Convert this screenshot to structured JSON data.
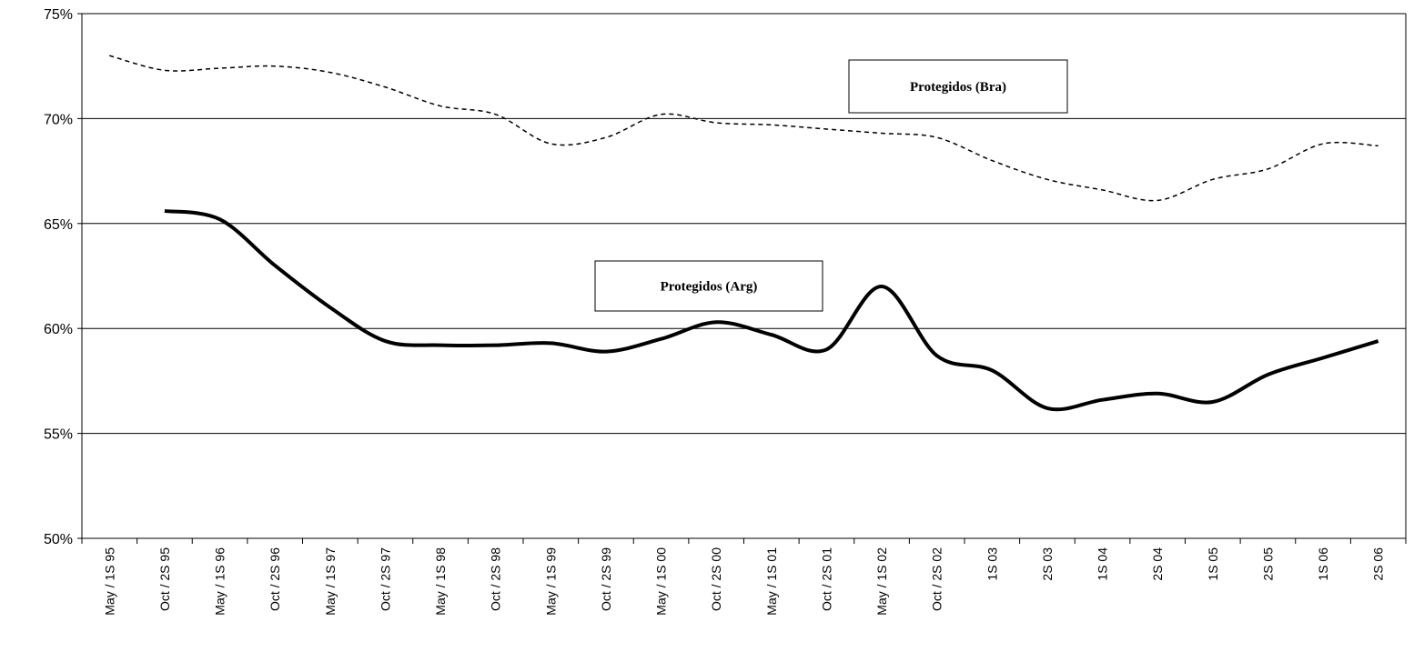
{
  "chart_data": {
    "type": "line",
    "categories": [
      "May / 1S 95",
      "Oct / 2S  95",
      "May / 1S 96",
      "Oct / 2S 96",
      "May / 1S 97",
      "Oct / 2S 97",
      "May / 1S 98",
      "Oct / 2S 98",
      "May / 1S 99",
      "Oct / 2S 99",
      "May / 1S 00",
      "Oct / 2S 00",
      "May / 1S 01",
      "Oct / 2S 01",
      "May / 1S 02",
      "Oct / 2S 02",
      "1S 03",
      "2S 03",
      "1S 04",
      "2S 04",
      "1S 05",
      "2S 05",
      "1S 06",
      "2S 06"
    ],
    "series": [
      {
        "name": "Protegidos (Bra)",
        "color": "#000000",
        "dashed": true,
        "values": [
          73.0,
          72.3,
          72.4,
          72.5,
          72.2,
          71.5,
          70.6,
          70.2,
          68.8,
          69.1,
          70.2,
          69.8,
          69.7,
          69.5,
          69.3,
          69.1,
          68.0,
          67.1,
          66.6,
          66.1,
          67.1,
          67.6,
          68.8,
          68.7
        ]
      },
      {
        "name": "Protegidos (Arg)",
        "color": "#000000",
        "dashed": false,
        "values": [
          null,
          65.6,
          65.2,
          63.0,
          61.0,
          59.4,
          59.2,
          59.2,
          59.3,
          58.9,
          59.5,
          60.3,
          59.7,
          59.0,
          62.0,
          58.7,
          58.0,
          56.2,
          56.6,
          56.9,
          56.5,
          57.8,
          58.6,
          59.4
        ]
      }
    ],
    "ylim": [
      50,
      75
    ],
    "yticks": [
      {
        "value": 50,
        "label": "50%"
      },
      {
        "value": 55,
        "label": "55%"
      },
      {
        "value": 60,
        "label": "60%"
      },
      {
        "value": 65,
        "label": "65%"
      },
      {
        "value": 70,
        "label": "70%"
      },
      {
        "value": 75,
        "label": "75%"
      }
    ],
    "grid": true
  }
}
